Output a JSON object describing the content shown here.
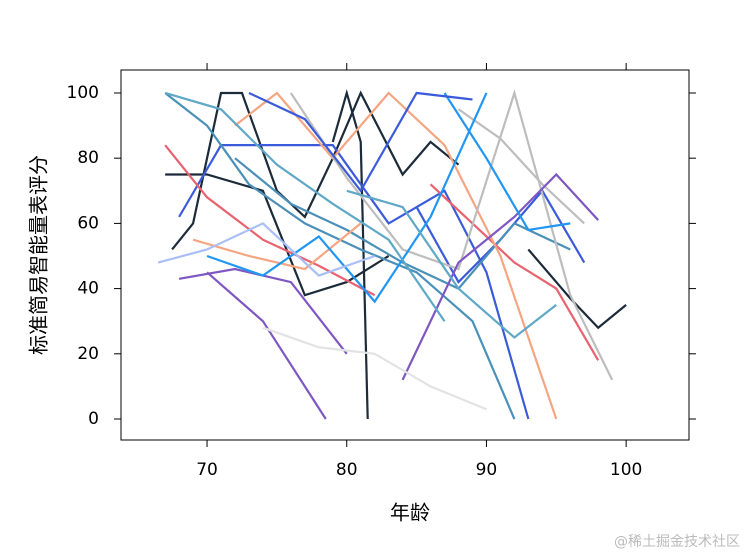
{
  "chart_data": {
    "type": "line",
    "xlabel": "年龄",
    "ylabel": "标准简易智能量表评分",
    "xlim": [
      63.84,
      104.5
    ],
    "ylim": [
      -6.44,
      107.05
    ],
    "xticks": [
      70,
      80,
      90,
      100
    ],
    "yticks": [
      0,
      20,
      40,
      60,
      80,
      100
    ],
    "series": [
      {
        "color": "#1c2b3a",
        "x": [
          79,
          80,
          81,
          81.5
        ],
        "values": [
          85,
          100,
          85,
          0
        ]
      },
      {
        "color": "#1c2b3a",
        "x": [
          93,
          95,
          96,
          98,
          100
        ],
        "values": [
          52,
          42,
          37,
          28,
          35
        ]
      },
      {
        "color": "#1c2b3a",
        "x": [
          67.5,
          69,
          71,
          72.5,
          75,
          77,
          79,
          81,
          84,
          86,
          88
        ],
        "values": [
          52,
          60,
          100,
          100,
          70,
          62,
          80,
          100,
          75,
          85,
          78
        ]
      },
      {
        "color": "#1c2b3a",
        "x": [
          67,
          70,
          74,
          77,
          80,
          83
        ],
        "values": [
          75,
          75,
          70,
          38,
          42,
          50
        ]
      },
      {
        "color": "#3b5bdb",
        "x": [
          68,
          71,
          75,
          79,
          83,
          87,
          90,
          93
        ],
        "values": [
          62,
          84,
          84,
          84,
          60,
          70,
          45,
          0
        ]
      },
      {
        "color": "#3b5bdb",
        "x": [
          85,
          88,
          91,
          94,
          97
        ],
        "values": [
          65,
          42,
          55,
          70,
          48
        ]
      },
      {
        "color": "#4a90b8",
        "x": [
          67,
          70,
          73,
          77,
          81,
          85,
          89,
          92
        ],
        "values": [
          100,
          90,
          72,
          60,
          52,
          45,
          30,
          0
        ]
      },
      {
        "color": "#4a90b8",
        "x": [
          72,
          76,
          80,
          84,
          88,
          92,
          96
        ],
        "values": [
          80,
          66,
          58,
          48,
          40,
          60,
          52
        ]
      },
      {
        "color": "#e8626f",
        "x": [
          67,
          70,
          74,
          78,
          82
        ],
        "values": [
          84,
          68,
          55,
          47,
          38
        ]
      },
      {
        "color": "#e8626f",
        "x": [
          86,
          89,
          92,
          95,
          98
        ],
        "values": [
          72,
          60,
          48,
          40,
          18
        ]
      },
      {
        "color": "#f4a582",
        "x": [
          72,
          75,
          79,
          83,
          87,
          91,
          95
        ],
        "values": [
          90,
          100,
          80,
          100,
          84,
          50,
          0
        ]
      },
      {
        "color": "#f4a582",
        "x": [
          69,
          73,
          77,
          81
        ],
        "values": [
          55,
          50,
          46,
          60
        ]
      },
      {
        "color": "#bdbdbd",
        "x": [
          76,
          80,
          84,
          88,
          92,
          96,
          99
        ],
        "values": [
          100,
          74,
          52,
          46,
          100,
          38,
          12
        ]
      },
      {
        "color": "#bdbdbd",
        "x": [
          88,
          91,
          94,
          97
        ],
        "values": [
          95,
          86,
          72,
          60
        ]
      },
      {
        "color": "#7e57c2",
        "x": [
          70,
          74,
          78.5
        ],
        "values": [
          45,
          30,
          0
        ]
      },
      {
        "color": "#7e57c2",
        "x": [
          84,
          88,
          92,
          95,
          98
        ],
        "values": [
          12,
          48,
          62,
          75,
          61
        ]
      },
      {
        "color": "#7e57c2",
        "x": [
          68,
          72,
          76,
          80
        ],
        "values": [
          43,
          46,
          42,
          20
        ]
      },
      {
        "color": "#2196f3",
        "x": [
          70,
          74,
          78,
          82,
          86,
          90
        ],
        "values": [
          50,
          44,
          56,
          36,
          62,
          100
        ]
      },
      {
        "color": "#2196f3",
        "x": [
          87,
          90,
          93,
          96
        ],
        "values": [
          100,
          80,
          58,
          60
        ]
      },
      {
        "color": "#5fa8c7",
        "x": [
          67,
          71,
          75,
          79,
          83,
          87
        ],
        "values": [
          100,
          95,
          78,
          66,
          55,
          30
        ]
      },
      {
        "color": "#5fa8c7",
        "x": [
          80,
          84,
          88,
          92,
          95
        ],
        "values": [
          70,
          65,
          40,
          25,
          35
        ]
      },
      {
        "color": "#a9bff5",
        "x": [
          66.5,
          70,
          74,
          78,
          82
        ],
        "values": [
          48,
          52,
          60,
          44,
          50
        ]
      },
      {
        "color": "#e3e3e3",
        "x": [
          74,
          78,
          82,
          86,
          90
        ],
        "values": [
          28,
          22,
          20,
          10,
          3
        ]
      },
      {
        "color": "#3b5bdb",
        "x": [
          73,
          77,
          81,
          85,
          89
        ],
        "values": [
          100,
          92,
          70,
          100,
          98
        ]
      }
    ]
  },
  "watermark": "@稀土掘金技术社区"
}
